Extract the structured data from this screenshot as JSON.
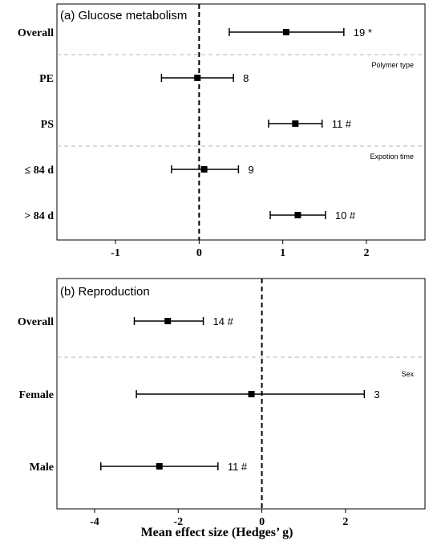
{
  "chart_data": [
    {
      "type": "forest",
      "title": "(a) Glucose metabolism",
      "xlim": [
        -1.7,
        2.7
      ],
      "xticks": [
        -1,
        0,
        1,
        2
      ],
      "xtick_labels": [
        "-1",
        "0",
        "1",
        "2"
      ],
      "xlabel": "",
      "reference_line_x": 0,
      "grid": false,
      "rows": [
        {
          "label": "Overall",
          "estimate": 1.04,
          "ci_low": 0.36,
          "ci_high": 1.73,
          "n_label": "19 *"
        },
        {
          "label": "PE",
          "estimate": -0.02,
          "ci_low": -0.45,
          "ci_high": 0.41,
          "n_label": "8"
        },
        {
          "label": "PS",
          "estimate": 1.15,
          "ci_low": 0.83,
          "ci_high": 1.47,
          "n_label": "11 #"
        },
        {
          "label": "≤ 84 d",
          "estimate": 0.06,
          "ci_low": -0.33,
          "ci_high": 0.47,
          "n_label": "9"
        },
        {
          "label": "> 84 d",
          "estimate": 1.18,
          "ci_low": 0.85,
          "ci_high": 1.51,
          "n_label": "10 #"
        }
      ],
      "groups": [
        {
          "label": "Polymer type",
          "divider_after_row": 0
        },
        {
          "label": "Expotion time",
          "divider_after_row": 2
        }
      ]
    },
    {
      "type": "forest",
      "title": "(b) Reproduction",
      "xlim": [
        -4.9,
        3.9
      ],
      "xticks": [
        -4,
        -2,
        0,
        2
      ],
      "xtick_labels": [
        "-4",
        "-2",
        "0",
        "2"
      ],
      "xlabel": "Mean effect size (Hedges’ g)",
      "reference_line_x": 0,
      "grid": false,
      "rows": [
        {
          "label": "Overall",
          "estimate": -2.25,
          "ci_low": -3.05,
          "ci_high": -1.4,
          "n_label": "14 #"
        },
        {
          "label": "Female",
          "estimate": -0.25,
          "ci_low": -3.0,
          "ci_high": 2.45,
          "n_label": "3"
        },
        {
          "label": "Male",
          "estimate": -2.45,
          "ci_low": -3.85,
          "ci_high": -1.05,
          "n_label": "11 #"
        }
      ],
      "groups": [
        {
          "label": "Sex",
          "divider_after_row": 0
        }
      ]
    }
  ]
}
